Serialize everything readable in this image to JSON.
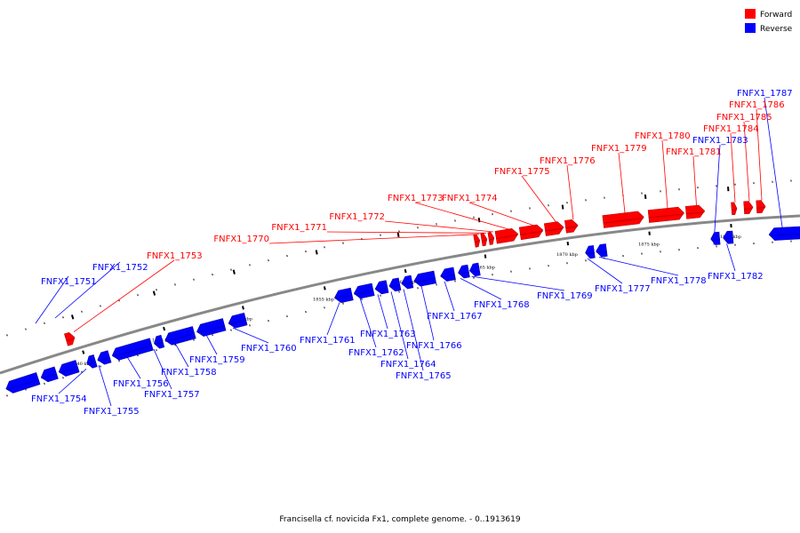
{
  "colors": {
    "forward": "#ff0000",
    "reverse": "#0000ff",
    "backbone": "#888888",
    "text": "#000000"
  },
  "legend": [
    {
      "label": "Forward",
      "strand": "forward"
    },
    {
      "label": "Reverse",
      "strand": "reverse"
    }
  ],
  "caption": "Francisella cf. novicida Fx1, complete genome. - 0..1913619",
  "ticks": [
    {
      "label": "1840 kbp"
    },
    {
      "label": "1845 kbp"
    },
    {
      "label": "1850 kbp"
    },
    {
      "label": "1855 kbp"
    },
    {
      "label": "1860 kbp"
    },
    {
      "label": "1865 kbp"
    },
    {
      "label": "1870 kbp"
    },
    {
      "label": "1875 kbp"
    },
    {
      "label": "1880 kbp"
    }
  ],
  "genes": [
    {
      "name": "FNFX1_1751",
      "strand": "reverse"
    },
    {
      "name": "FNFX1_1752",
      "strand": "reverse"
    },
    {
      "name": "FNFX1_1753",
      "strand": "forward"
    },
    {
      "name": "FNFX1_1754",
      "strand": "reverse"
    },
    {
      "name": "FNFX1_1755",
      "strand": "reverse"
    },
    {
      "name": "FNFX1_1756",
      "strand": "reverse"
    },
    {
      "name": "FNFX1_1757",
      "strand": "reverse"
    },
    {
      "name": "FNFX1_1758",
      "strand": "reverse"
    },
    {
      "name": "FNFX1_1759",
      "strand": "reverse"
    },
    {
      "name": "FNFX1_1760",
      "strand": "reverse"
    },
    {
      "name": "FNFX1_1761",
      "strand": "reverse"
    },
    {
      "name": "FNFX1_1762",
      "strand": "reverse"
    },
    {
      "name": "FNFX1_1763",
      "strand": "reverse"
    },
    {
      "name": "FNFX1_1764",
      "strand": "reverse"
    },
    {
      "name": "FNFX1_1765",
      "strand": "reverse"
    },
    {
      "name": "FNFX1_1766",
      "strand": "reverse"
    },
    {
      "name": "FNFX1_1767",
      "strand": "reverse"
    },
    {
      "name": "FNFX1_1768",
      "strand": "reverse"
    },
    {
      "name": "FNFX1_1769",
      "strand": "reverse"
    },
    {
      "name": "FNFX1_1770",
      "strand": "forward"
    },
    {
      "name": "FNFX1_1771",
      "strand": "forward"
    },
    {
      "name": "FNFX1_1772",
      "strand": "forward"
    },
    {
      "name": "FNFX1_1773",
      "strand": "forward"
    },
    {
      "name": "FNFX1_1774",
      "strand": "forward"
    },
    {
      "name": "FNFX1_1775",
      "strand": "forward"
    },
    {
      "name": "FNFX1_1776",
      "strand": "forward"
    },
    {
      "name": "FNFX1_1777",
      "strand": "reverse"
    },
    {
      "name": "FNFX1_1778",
      "strand": "reverse"
    },
    {
      "name": "FNFX1_1779",
      "strand": "forward"
    },
    {
      "name": "FNFX1_1780",
      "strand": "forward"
    },
    {
      "name": "FNFX1_1781",
      "strand": "forward"
    },
    {
      "name": "FNFX1_1782",
      "strand": "reverse"
    },
    {
      "name": "FNFX1_1783",
      "strand": "reverse"
    },
    {
      "name": "FNFX1_1784",
      "strand": "forward"
    },
    {
      "name": "FNFX1_1785",
      "strand": "forward"
    },
    {
      "name": "FNFX1_1786",
      "strand": "forward"
    },
    {
      "name": "FNFX1_1787",
      "strand": "reverse"
    }
  ]
}
